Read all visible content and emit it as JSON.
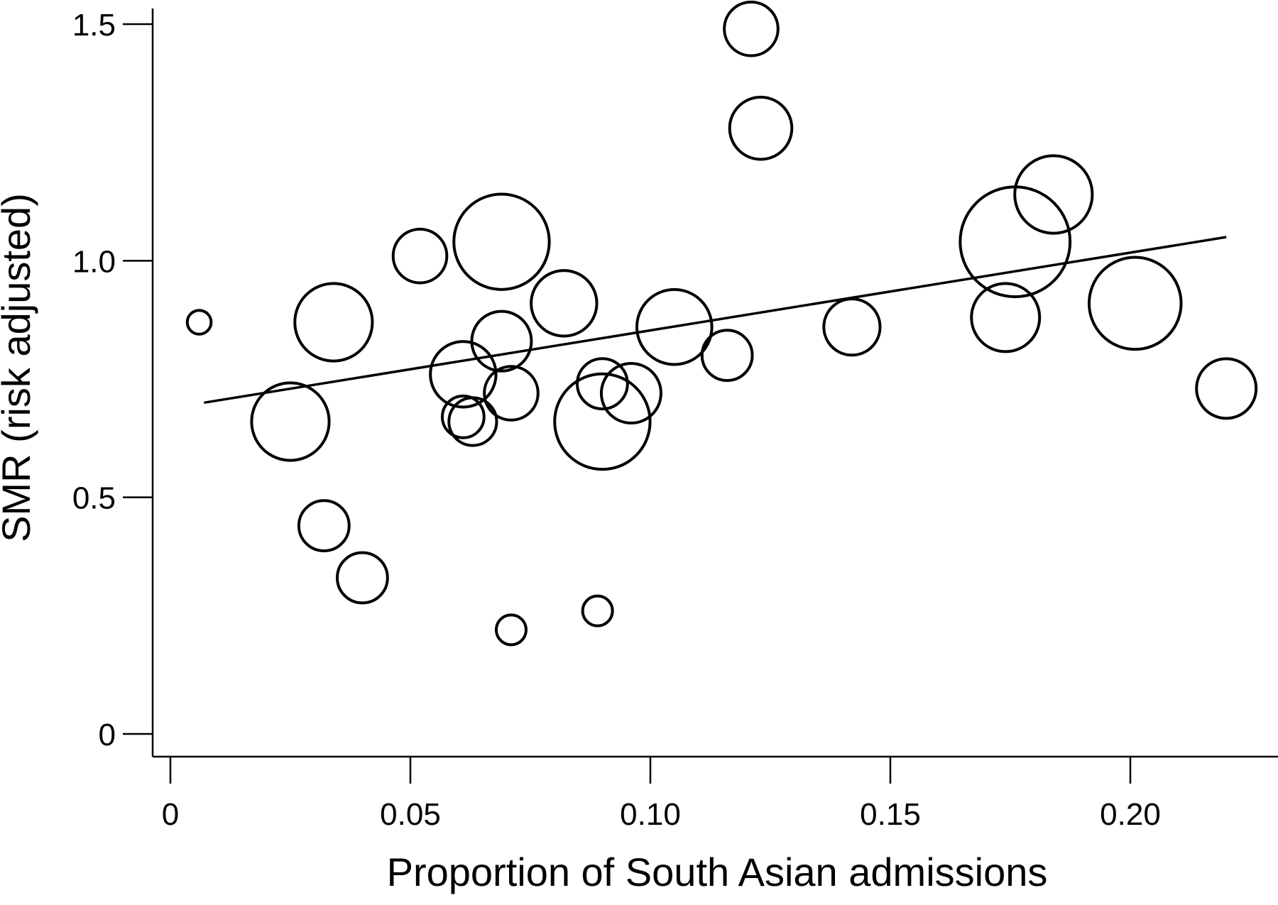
{
  "chart_data": {
    "type": "scatter",
    "title": "",
    "xlabel": "Proportion of South Asian admissions",
    "ylabel": "SMR (risk adjusted)",
    "xlim": [
      0,
      0.23
    ],
    "ylim": [
      0,
      1.5
    ],
    "x_ticks": [
      {
        "value": 0,
        "label": "0"
      },
      {
        "value": 0.05,
        "label": "0.05"
      },
      {
        "value": 0.1,
        "label": "0.10"
      },
      {
        "value": 0.15,
        "label": "0.15"
      },
      {
        "value": 0.2,
        "label": "0.20"
      }
    ],
    "y_ticks": [
      {
        "value": 0,
        "label": "0"
      },
      {
        "value": 0.5,
        "label": "0.5"
      },
      {
        "value": 1.0,
        "label": "1.0"
      },
      {
        "value": 1.5,
        "label": "1.5"
      }
    ],
    "grid": false,
    "legend": "none",
    "marker": "hollow circle, size proportional to weight",
    "points": [
      {
        "x": 0.006,
        "y": 0.87,
        "size": 0.28
      },
      {
        "x": 0.025,
        "y": 0.66,
        "size": 0.91
      },
      {
        "x": 0.032,
        "y": 0.44,
        "size": 0.59
      },
      {
        "x": 0.034,
        "y": 0.87,
        "size": 0.91
      },
      {
        "x": 0.04,
        "y": 0.33,
        "size": 0.59
      },
      {
        "x": 0.052,
        "y": 1.01,
        "size": 0.63
      },
      {
        "x": 0.061,
        "y": 0.76,
        "size": 0.77
      },
      {
        "x": 0.061,
        "y": 0.67,
        "size": 0.49
      },
      {
        "x": 0.063,
        "y": 0.66,
        "size": 0.56
      },
      {
        "x": 0.069,
        "y": 1.04,
        "size": 1.12
      },
      {
        "x": 0.069,
        "y": 0.83,
        "size": 0.7
      },
      {
        "x": 0.071,
        "y": 0.72,
        "size": 0.63
      },
      {
        "x": 0.071,
        "y": 0.22,
        "size": 0.35
      },
      {
        "x": 0.082,
        "y": 0.91,
        "size": 0.77
      },
      {
        "x": 0.089,
        "y": 0.26,
        "size": 0.35
      },
      {
        "x": 0.09,
        "y": 0.66,
        "size": 1.12
      },
      {
        "x": 0.09,
        "y": 0.74,
        "size": 0.59
      },
      {
        "x": 0.096,
        "y": 0.72,
        "size": 0.7
      },
      {
        "x": 0.105,
        "y": 0.86,
        "size": 0.88
      },
      {
        "x": 0.116,
        "y": 0.8,
        "size": 0.59
      },
      {
        "x": 0.121,
        "y": 1.49,
        "size": 0.63
      },
      {
        "x": 0.123,
        "y": 1.28,
        "size": 0.73
      },
      {
        "x": 0.142,
        "y": 0.86,
        "size": 0.66
      },
      {
        "x": 0.174,
        "y": 0.88,
        "size": 0.8
      },
      {
        "x": 0.176,
        "y": 1.04,
        "size": 1.29
      },
      {
        "x": 0.184,
        "y": 1.14,
        "size": 0.91
      },
      {
        "x": 0.201,
        "y": 0.91,
        "size": 1.08
      },
      {
        "x": 0.22,
        "y": 0.73,
        "size": 0.7
      }
    ],
    "trendline": {
      "x": [
        0.007,
        0.22
      ],
      "y": [
        0.7,
        1.05
      ]
    }
  }
}
